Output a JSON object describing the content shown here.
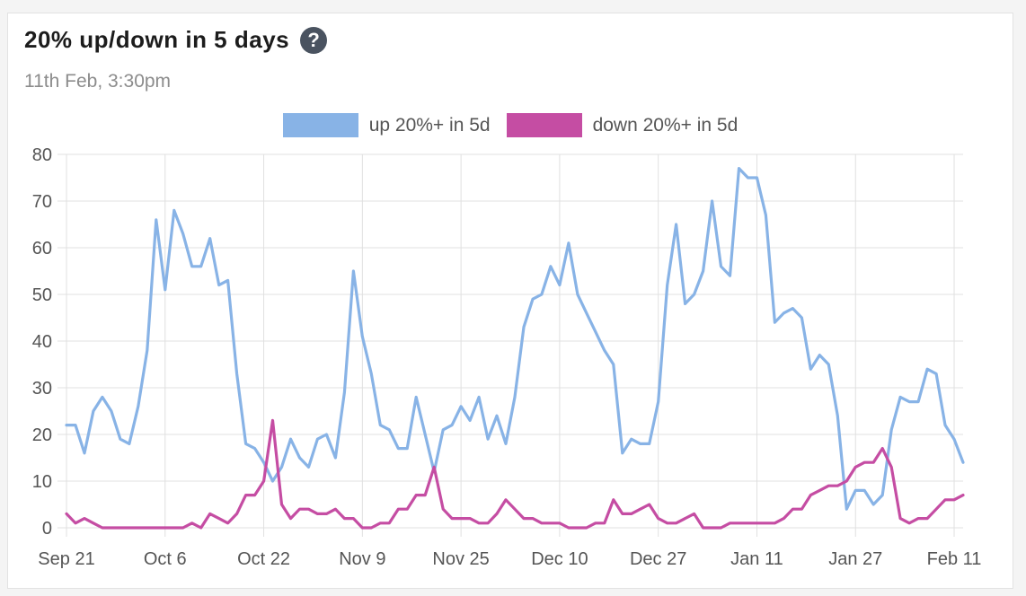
{
  "header": {
    "title": "20% up/down in 5 days",
    "help_icon": "question-circle-icon",
    "subtitle": "11th Feb, 3:30pm"
  },
  "colors": {
    "up": "#88b3e6",
    "down": "#c54da3",
    "grid": "#e0e0e0",
    "axis_text": "#555555"
  },
  "chart_data": {
    "type": "line",
    "title": "20% up/down in 5 days",
    "subtitle": "11th Feb, 3:30pm",
    "xlabel": "",
    "ylabel": "",
    "ylim": [
      0,
      80
    ],
    "yticks": [
      0,
      10,
      20,
      30,
      40,
      50,
      60,
      70,
      80
    ],
    "x_tick_labels": [
      "Sep 21",
      "Oct 6",
      "Oct 22",
      "Nov 9",
      "Nov 25",
      "Dec 10",
      "Dec 27",
      "Jan 11",
      "Jan 27",
      "Feb 11"
    ],
    "x_tick_positions": [
      0,
      11,
      22,
      33,
      44,
      55,
      66,
      77,
      88,
      99
    ],
    "grid": true,
    "legend_position": "top-center",
    "series": [
      {
        "name": "up 20%+ in 5d",
        "color": "#88b3e6",
        "values": [
          22,
          22,
          16,
          25,
          28,
          25,
          19,
          18,
          26,
          38,
          66,
          51,
          68,
          63,
          56,
          56,
          62,
          52,
          53,
          33,
          18,
          17,
          14,
          10,
          13,
          19,
          15,
          13,
          19,
          20,
          15,
          29,
          55,
          41,
          33,
          22,
          21,
          17,
          17,
          28,
          20,
          12,
          21,
          22,
          26,
          23,
          28,
          19,
          24,
          18,
          28,
          43,
          49,
          50,
          56,
          52,
          61,
          50,
          46,
          42,
          38,
          35,
          16,
          19,
          18,
          18,
          27,
          52,
          65,
          48,
          50,
          55,
          70,
          56,
          54,
          77,
          75,
          75,
          67,
          44,
          46,
          47,
          45,
          34,
          37,
          35,
          24,
          4,
          8,
          8,
          5,
          7,
          21,
          28,
          27,
          27,
          34,
          33,
          22,
          19,
          14
        ]
      },
      {
        "name": "down 20%+ in 5d",
        "color": "#c54da3",
        "values": [
          3,
          1,
          2,
          1,
          0,
          0,
          0,
          0,
          0,
          0,
          0,
          0,
          0,
          0,
          1,
          0,
          3,
          2,
          1,
          3,
          7,
          7,
          10,
          23,
          5,
          2,
          4,
          4,
          3,
          3,
          4,
          2,
          2,
          0,
          0,
          1,
          1,
          4,
          4,
          7,
          7,
          13,
          4,
          2,
          2,
          2,
          1,
          1,
          3,
          6,
          4,
          2,
          2,
          1,
          1,
          1,
          0,
          0,
          0,
          1,
          1,
          6,
          3,
          3,
          4,
          5,
          2,
          1,
          1,
          2,
          3,
          0,
          0,
          0,
          1,
          1,
          1,
          1,
          1,
          1,
          2,
          4,
          4,
          7,
          8,
          9,
          9,
          10,
          13,
          14,
          14,
          17,
          13,
          2,
          1,
          2,
          2,
          4,
          6,
          6,
          7
        ]
      }
    ]
  }
}
